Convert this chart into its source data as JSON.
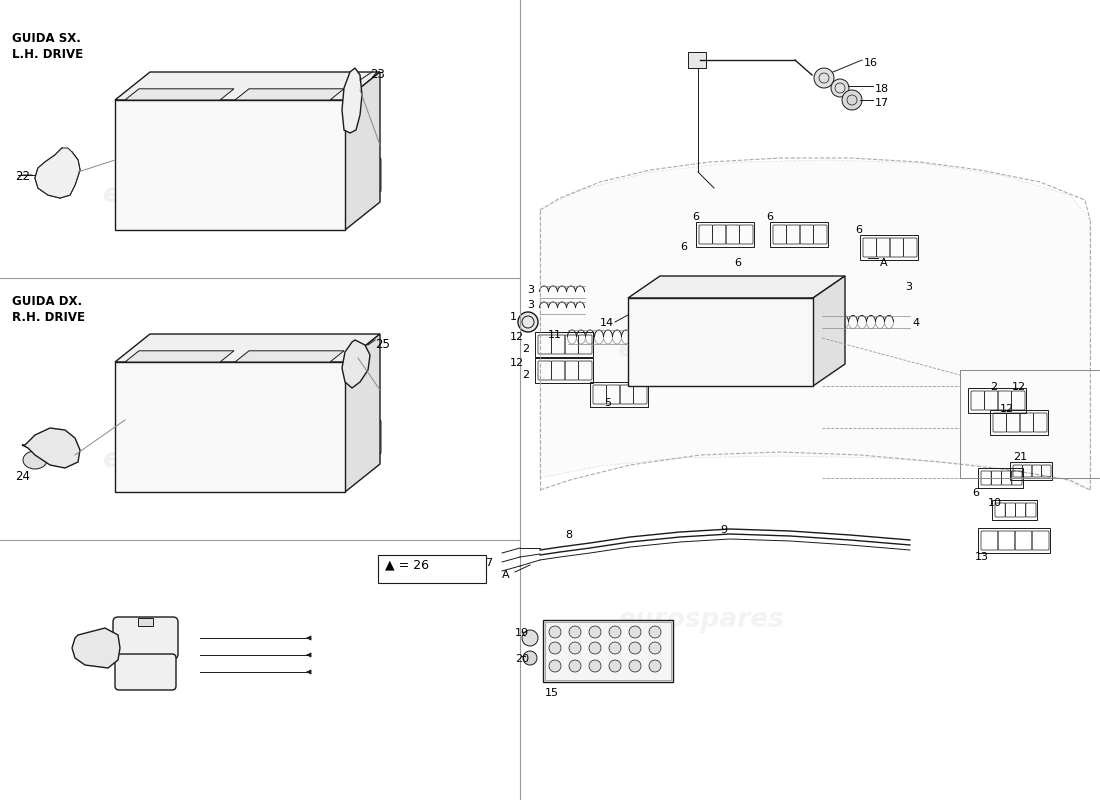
{
  "bg_color": "#ffffff",
  "lc": "#1a1a1a",
  "lc_light": "#888888",
  "wm_color": "#d8d8d8",
  "wm_text": "eurospares",
  "div_color": "#999999",
  "lh_label1": "GUIDA SX.",
  "lh_label2": "L.H. DRIVE",
  "rh_label1": "GUIDA DX.",
  "rh_label2": "R.H. DRIVE",
  "legend": "▲ = 26",
  "lw_main": 1.0,
  "lw_thin": 0.7,
  "lw_vlight": 0.5
}
